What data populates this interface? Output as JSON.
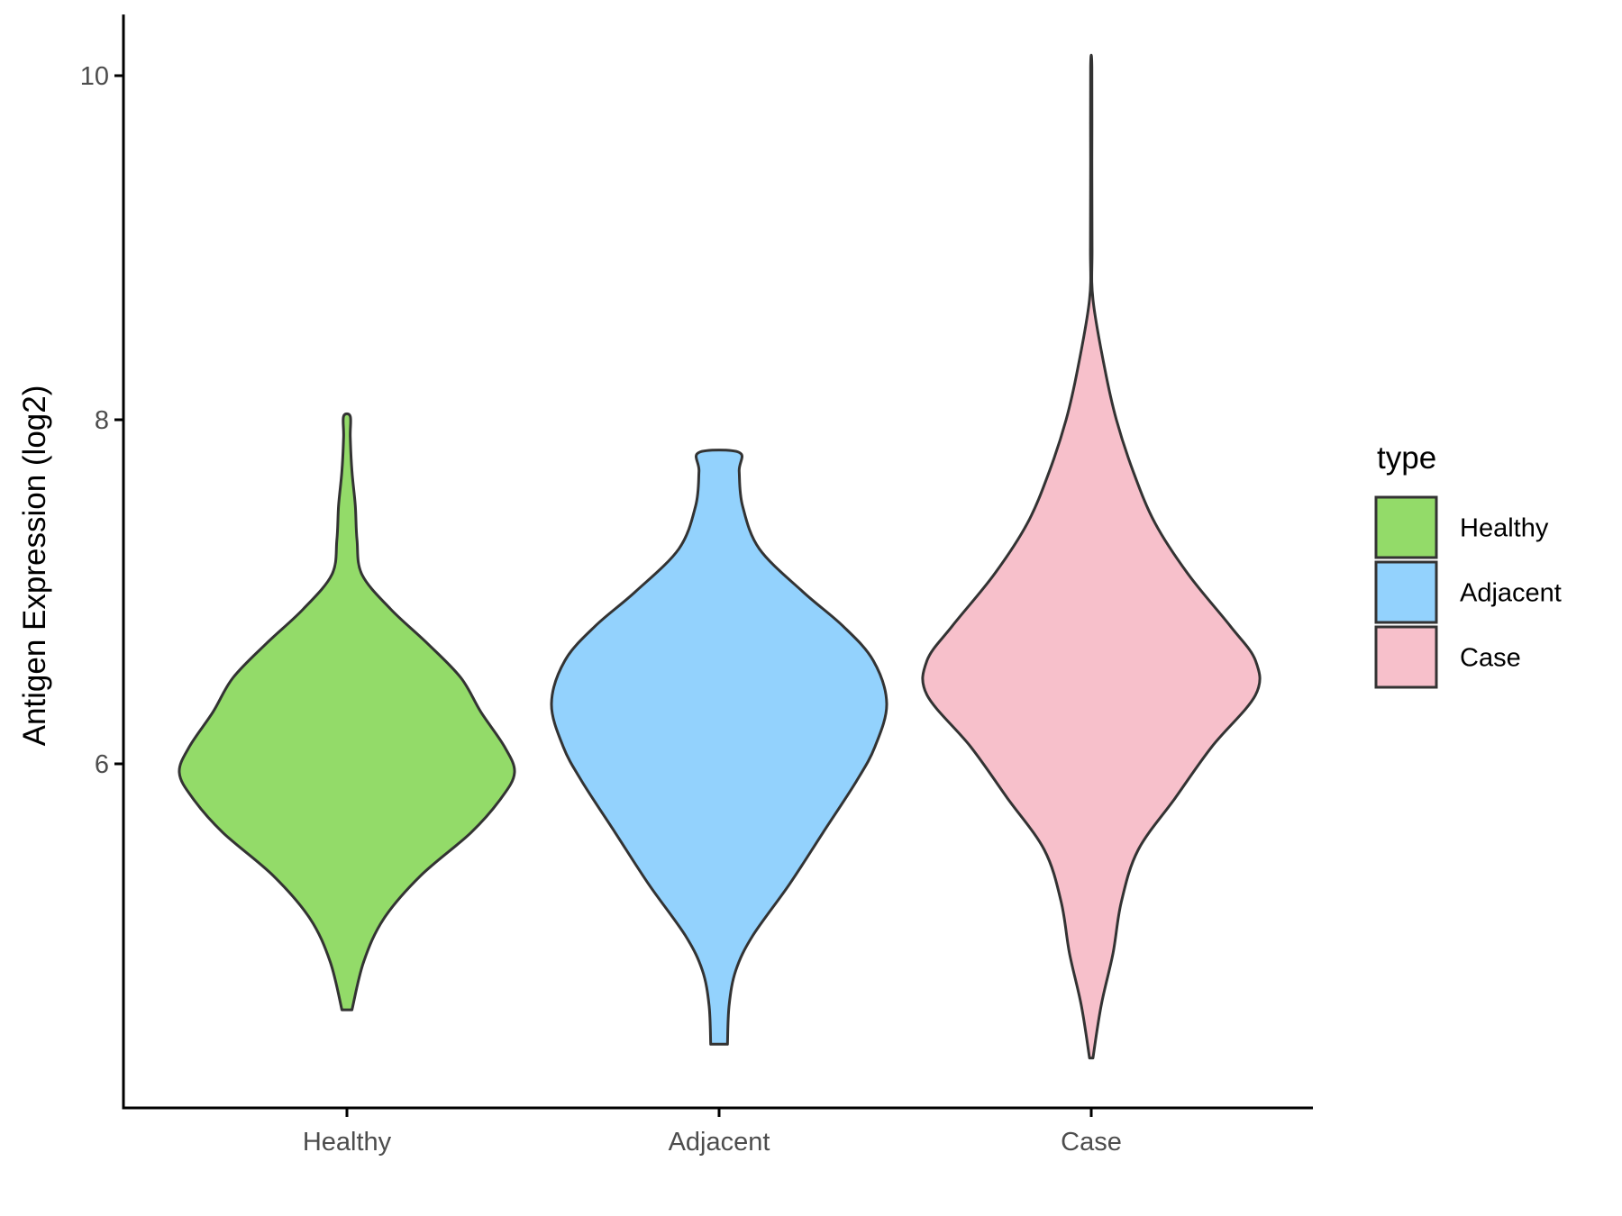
{
  "chart_data": {
    "type": "violin",
    "ylabel": "Antigen Expression (log2)",
    "xlabel": "",
    "categories": [
      "Healthy",
      "Adjacent",
      "Case"
    ],
    "y_ticks": [
      6,
      8,
      10
    ],
    "ylim": [
      4.2,
      10.35
    ],
    "legend": {
      "title": "type",
      "position": "right",
      "entries": [
        "Healthy",
        "Adjacent",
        "Case"
      ]
    },
    "colors": {
      "Healthy": "#93DB69",
      "Adjacent": "#93D2FD",
      "Case": "#F7C0CB",
      "outline": "#333333",
      "axis": "#000000"
    },
    "series": [
      {
        "category": "Healthy",
        "min": 4.57,
        "max": 8.02,
        "density_profile": [
          [
            4.57,
            0.03
          ],
          [
            4.85,
            0.1
          ],
          [
            5.1,
            0.22
          ],
          [
            5.35,
            0.44
          ],
          [
            5.6,
            0.74
          ],
          [
            5.8,
            0.92
          ],
          [
            5.95,
            1.0
          ],
          [
            6.1,
            0.94
          ],
          [
            6.3,
            0.8
          ],
          [
            6.5,
            0.68
          ],
          [
            6.7,
            0.48
          ],
          [
            6.9,
            0.26
          ],
          [
            7.1,
            0.09
          ],
          [
            7.3,
            0.06
          ],
          [
            7.5,
            0.05
          ],
          [
            7.7,
            0.03
          ],
          [
            7.9,
            0.02
          ],
          [
            8.02,
            0.02
          ]
        ]
      },
      {
        "category": "Adjacent",
        "min": 4.37,
        "max": 7.81,
        "density_profile": [
          [
            4.37,
            0.05
          ],
          [
            4.6,
            0.06
          ],
          [
            4.8,
            0.1
          ],
          [
            5.0,
            0.2
          ],
          [
            5.3,
            0.42
          ],
          [
            5.6,
            0.62
          ],
          [
            5.9,
            0.82
          ],
          [
            6.1,
            0.93
          ],
          [
            6.35,
            1.0
          ],
          [
            6.6,
            0.92
          ],
          [
            6.8,
            0.74
          ],
          [
            7.0,
            0.5
          ],
          [
            7.25,
            0.24
          ],
          [
            7.5,
            0.14
          ],
          [
            7.7,
            0.12
          ],
          [
            7.81,
            0.12
          ]
        ]
      },
      {
        "category": "Case",
        "min": 4.29,
        "max": 10.05,
        "density_profile": [
          [
            4.29,
            0.01
          ],
          [
            4.6,
            0.06
          ],
          [
            4.9,
            0.13
          ],
          [
            5.2,
            0.18
          ],
          [
            5.5,
            0.28
          ],
          [
            5.8,
            0.5
          ],
          [
            6.1,
            0.72
          ],
          [
            6.4,
            0.98
          ],
          [
            6.6,
            0.98
          ],
          [
            6.8,
            0.83
          ],
          [
            7.1,
            0.58
          ],
          [
            7.4,
            0.38
          ],
          [
            7.7,
            0.25
          ],
          [
            8.0,
            0.15
          ],
          [
            8.3,
            0.08
          ],
          [
            8.7,
            0.01
          ],
          [
            9.0,
            0.005
          ],
          [
            9.5,
            0.004
          ],
          [
            10.05,
            0.004
          ]
        ]
      }
    ]
  }
}
